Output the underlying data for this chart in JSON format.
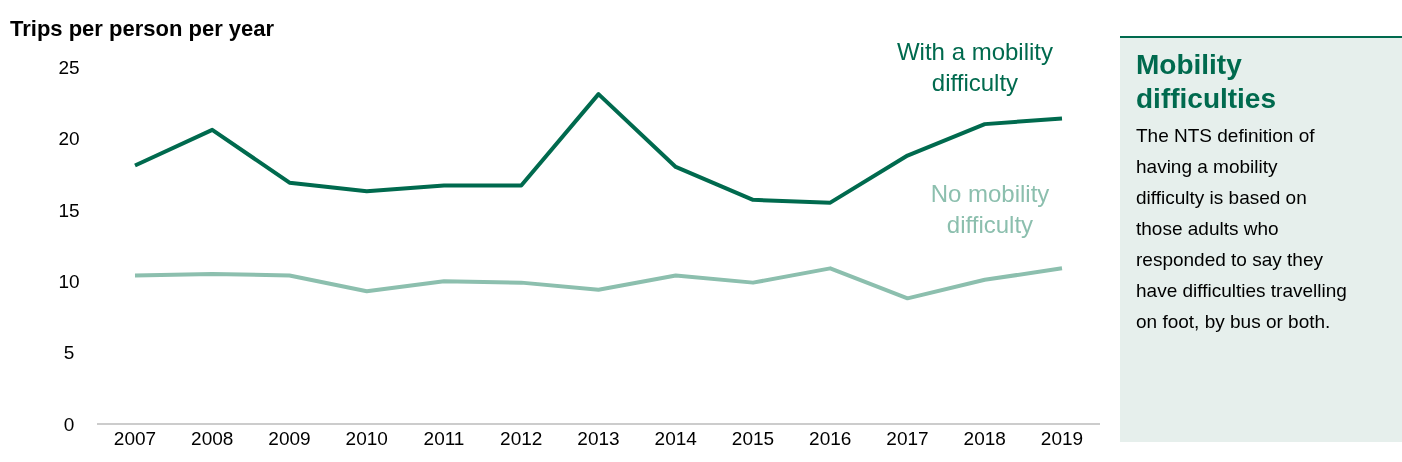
{
  "chart_data": {
    "type": "line",
    "ylabel": "Trips per person per year",
    "categories": [
      "2007",
      "2008",
      "2009",
      "2010",
      "2011",
      "2012",
      "2013",
      "2014",
      "2015",
      "2016",
      "2017",
      "2018",
      "2019"
    ],
    "series": [
      {
        "name": "With a mobility difficulty",
        "color": "#006a4e",
        "values": [
          18.1,
          20.6,
          16.9,
          16.3,
          16.7,
          16.7,
          23.1,
          18.0,
          15.7,
          15.5,
          18.8,
          21.0,
          21.4
        ]
      },
      {
        "name": "No mobility difficulty",
        "color": "#8cbfae",
        "values": [
          10.4,
          10.5,
          10.4,
          9.3,
          10.0,
          9.9,
          9.4,
          10.4,
          9.9,
          10.9,
          8.8,
          10.1,
          10.9
        ]
      }
    ],
    "ylim": [
      0,
      25
    ],
    "yticks": [
      0,
      5,
      10,
      15,
      20,
      25
    ],
    "marker": "none",
    "legend": false,
    "grid": false,
    "annotations": [
      "Mobility difficulties",
      "The NTS definition of having a mobility difficulty is based on those adults who responded to say they have difficulties travelling on foot, by bus or both."
    ]
  }
}
